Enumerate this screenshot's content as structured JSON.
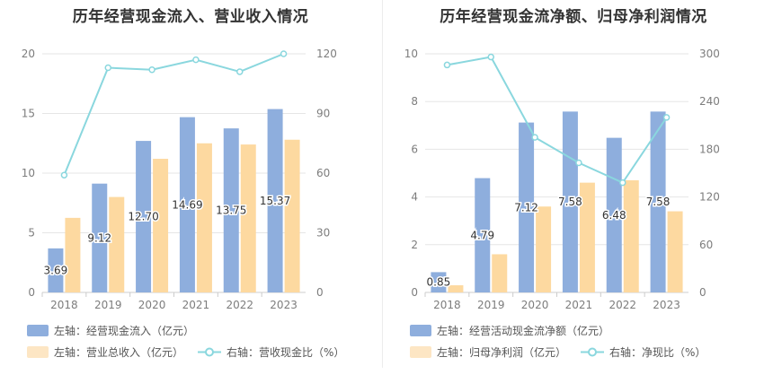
{
  "colors": {
    "bar1": "#8eaedd",
    "bar2": "#fdd9a0",
    "line": "#8ad7de",
    "grid": "#e6e6e6",
    "axis_text": "#7d7d7d",
    "label": "#333333"
  },
  "chart_data": [
    {
      "type": "bar",
      "title": "历年经营现金流入、营业收入情况",
      "categories": [
        "2018",
        "2019",
        "2020",
        "2021",
        "2022",
        "2023"
      ],
      "left_axis": {
        "ylim": [
          0,
          20
        ],
        "ticks": [
          "0",
          "5",
          "10",
          "15",
          "20"
        ]
      },
      "right_axis": {
        "ylim": [
          0,
          120
        ],
        "ticks": [
          "0",
          "30",
          "60",
          "90",
          "120"
        ]
      },
      "series": [
        {
          "name": "左轴：经营现金流入（亿元）",
          "kind": "bar",
          "axis": "left",
          "values": [
            3.69,
            9.12,
            12.7,
            14.69,
            13.75,
            15.37
          ],
          "labels": [
            "3.69",
            "9.12",
            "12.70",
            "14.69",
            "13.75",
            "15.37"
          ]
        },
        {
          "name": "左轴：营业总收入（亿元）",
          "kind": "bar",
          "axis": "left",
          "values": [
            6.25,
            8.0,
            11.2,
            12.5,
            12.4,
            12.8
          ]
        },
        {
          "name": "右轴：营收现金比（%）",
          "kind": "line",
          "axis": "right",
          "values": [
            59,
            113,
            112,
            117,
            111,
            120
          ]
        }
      ]
    },
    {
      "type": "bar",
      "title": "历年经营现金流净额、归母净利润情况",
      "categories": [
        "2018",
        "2019",
        "2020",
        "2021",
        "2022",
        "2023"
      ],
      "left_axis": {
        "ylim": [
          0,
          10
        ],
        "ticks": [
          "0",
          "2",
          "4",
          "6",
          "8",
          "10"
        ]
      },
      "right_axis": {
        "ylim": [
          0,
          300
        ],
        "ticks": [
          "0",
          "60",
          "120",
          "180",
          "240",
          "300"
        ]
      },
      "series": [
        {
          "name": "左轴：经营活动现金流净额（亿元）",
          "kind": "bar",
          "axis": "left",
          "values": [
            0.85,
            4.79,
            7.12,
            7.58,
            6.48,
            7.58
          ],
          "labels": [
            "0.85",
            "4.79",
            "7.12",
            "7.58",
            "6.48",
            "7.58"
          ]
        },
        {
          "name": "左轴：归母净利润（亿元）",
          "kind": "bar",
          "axis": "left",
          "values": [
            0.3,
            1.6,
            3.6,
            4.6,
            4.7,
            3.4
          ]
        },
        {
          "name": "右轴：净现比（%）",
          "kind": "line",
          "axis": "right",
          "values": [
            286,
            296,
            195,
            163,
            138,
            220
          ]
        }
      ]
    }
  ]
}
